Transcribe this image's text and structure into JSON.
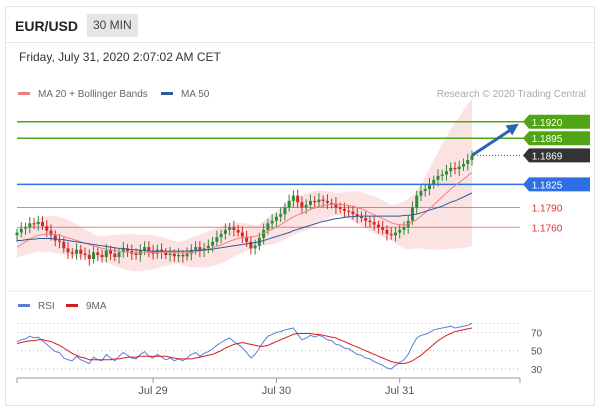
{
  "header": {
    "symbol": "EUR/USD",
    "timeframe": "30 MIN",
    "timestamp": "Friday, July 31, 2020 2:07:02 AM CET"
  },
  "chart_data": {
    "type": "line",
    "main": {
      "legend": [
        {
          "name": "MA 20 + Bollinger Bands",
          "color": "#f08080"
        },
        {
          "name": "MA 50",
          "color": "#2c5c9c"
        }
      ],
      "credit": "Research © 2020 Trading Central",
      "ylim": [
        1.1668,
        1.1956
      ],
      "last_price": {
        "value": 1.1869,
        "label": "1.1869",
        "color": "#333333"
      },
      "arrow": {
        "from": {
          "x": 107,
          "y": 1.1869
        },
        "to": {
          "x": 118,
          "y": 1.1917
        },
        "color": "#2c64ad"
      },
      "levels": [
        {
          "value": 1.192,
          "label": "1.1920",
          "color": "#4fa515",
          "kind": "resistance"
        },
        {
          "value": 1.1895,
          "label": "1.1895",
          "color": "#4fa515",
          "kind": "resistance"
        },
        {
          "value": 1.1825,
          "label": "1.1825",
          "color": "#2e6fe6",
          "kind": "pivot"
        },
        {
          "value": 1.179,
          "label": "1.1790",
          "color": "#e03030",
          "kind": "support"
        },
        {
          "value": 1.176,
          "label": "1.1760",
          "color": "#e03030",
          "kind": "support"
        }
      ],
      "close": [
        1.1752,
        1.1758,
        1.176,
        1.1766,
        1.1765,
        1.1768,
        1.1762,
        1.1755,
        1.1748,
        1.174,
        1.1738,
        1.1728,
        1.1722,
        1.172,
        1.1726,
        1.172,
        1.1718,
        1.1712,
        1.1722,
        1.1718,
        1.1715,
        1.1725,
        1.172,
        1.1715,
        1.1722,
        1.1728,
        1.1724,
        1.172,
        1.1718,
        1.1725,
        1.173,
        1.1724,
        1.172,
        1.1726,
        1.1722,
        1.1718,
        1.172,
        1.1716,
        1.1718,
        1.1716,
        1.172,
        1.1726,
        1.173,
        1.1724,
        1.1728,
        1.1732,
        1.1738,
        1.1745,
        1.175,
        1.1756,
        1.176,
        1.1756,
        1.1752,
        1.1746,
        1.1738,
        1.1728,
        1.1732,
        1.1744,
        1.1756,
        1.1766,
        1.177,
        1.1776,
        1.178,
        1.179,
        1.18,
        1.1808,
        1.1798,
        1.179,
        1.1794,
        1.18,
        1.1798,
        1.1802,
        1.18,
        1.1797,
        1.1796,
        1.179,
        1.1788,
        1.1785,
        1.1784,
        1.178,
        1.1776,
        1.1774,
        1.177,
        1.1768,
        1.1764,
        1.176,
        1.1756,
        1.175,
        1.1748,
        1.1752,
        1.1756,
        1.176,
        1.177,
        1.179,
        1.1808,
        1.1815,
        1.1818,
        1.1825,
        1.1832,
        1.1838,
        1.184,
        1.1845,
        1.185,
        1.1848,
        1.1852,
        1.1856,
        1.1862,
        1.1869
      ],
      "ma20": [
        1.173,
        1.1734,
        1.1738,
        1.1742,
        1.1745,
        1.1748,
        1.1749,
        1.175,
        1.175,
        1.1749,
        1.1748,
        1.1746,
        1.1744,
        1.1742,
        1.174,
        1.1738,
        1.1736,
        1.1734,
        1.1732,
        1.173,
        1.1728,
        1.1727,
        1.1726,
        1.1725,
        1.1724,
        1.1723,
        1.1722,
        1.1722,
        1.1721,
        1.1721,
        1.1722,
        1.1722,
        1.1722,
        1.1722,
        1.1723,
        1.1722,
        1.1722,
        1.1722,
        1.1721,
        1.1721,
        1.1721,
        1.1722,
        1.1723,
        1.1724,
        1.1725,
        1.1727,
        1.1729,
        1.1731,
        1.1733,
        1.1736,
        1.1739,
        1.1741,
        1.1743,
        1.1744,
        1.1745,
        1.1745,
        1.1746,
        1.1748,
        1.1751,
        1.1754,
        1.1757,
        1.176,
        1.1764,
        1.1768,
        1.1772,
        1.1776,
        1.1779,
        1.1781,
        1.1784,
        1.1787,
        1.179,
        1.1792,
        1.1793,
        1.1794,
        1.1795,
        1.1795,
        1.1795,
        1.1794,
        1.1793,
        1.1792,
        1.179,
        1.1788,
        1.1785,
        1.1782,
        1.1779,
        1.1776,
        1.1773,
        1.177,
        1.1767,
        1.1765,
        1.1764,
        1.1764,
        1.1765,
        1.1768,
        1.1772,
        1.1777,
        1.1782,
        1.1788,
        1.1794,
        1.18,
        1.1806,
        1.1812,
        1.1818,
        1.1823,
        1.1828,
        1.1833,
        1.1838,
        1.1843
      ],
      "ma50": [
        1.174,
        1.174,
        1.1741,
        1.1742,
        1.1742,
        1.1743,
        1.1743,
        1.1743,
        1.1743,
        1.1742,
        1.1742,
        1.1741,
        1.174,
        1.1739,
        1.1738,
        1.1737,
        1.1736,
        1.1735,
        1.1734,
        1.1733,
        1.1732,
        1.1731,
        1.173,
        1.1729,
        1.1728,
        1.1728,
        1.1727,
        1.1726,
        1.1726,
        1.1725,
        1.1725,
        1.1724,
        1.1724,
        1.1724,
        1.1724,
        1.1724,
        1.1724,
        1.1724,
        1.1724,
        1.1724,
        1.1724,
        1.1724,
        1.1725,
        1.1725,
        1.1726,
        1.1726,
        1.1727,
        1.1728,
        1.1729,
        1.173,
        1.1731,
        1.1732,
        1.1733,
        1.1734,
        1.1735,
        1.1736,
        1.1737,
        1.1738,
        1.174,
        1.1742,
        1.1744,
        1.1746,
        1.1748,
        1.175,
        1.1752,
        1.1755,
        1.1757,
        1.1759,
        1.1761,
        1.1763,
        1.1765,
        1.1767,
        1.1769,
        1.177,
        1.1772,
        1.1773,
        1.1774,
        1.1775,
        1.1776,
        1.1776,
        1.1777,
        1.1777,
        1.1777,
        1.1777,
        1.1777,
        1.1777,
        1.1777,
        1.1777,
        1.1777,
        1.1777,
        1.1777,
        1.1778,
        1.1778,
        1.1779,
        1.178,
        1.1782,
        1.1784,
        1.1786,
        1.1788,
        1.179,
        1.1792,
        1.1795,
        1.1798,
        1.18,
        1.1803,
        1.1806,
        1.1809,
        1.1812
      ]
    },
    "rsi": {
      "legend": [
        {
          "name": "RSI",
          "color": "#5b7fd6"
        },
        {
          "name": "9MA",
          "color": "#d22020"
        }
      ],
      "ylim": [
        20,
        86
      ],
      "ticks": [
        70,
        50,
        30
      ],
      "rsi": [
        60,
        62,
        63,
        66,
        64,
        65,
        61,
        57,
        53,
        49,
        48,
        42,
        40,
        39,
        44,
        40,
        38,
        36,
        43,
        40,
        39,
        46,
        42,
        39,
        44,
        48,
        45,
        42,
        41,
        46,
        49,
        44,
        42,
        46,
        43,
        40,
        42,
        39,
        41,
        39,
        42,
        46,
        48,
        44,
        47,
        49,
        52,
        56,
        59,
        62,
        64,
        60,
        57,
        53,
        48,
        42,
        46,
        53,
        60,
        66,
        68,
        70,
        71,
        73,
        74,
        75,
        68,
        62,
        64,
        67,
        65,
        67,
        65,
        62,
        61,
        57,
        56,
        53,
        52,
        49,
        46,
        45,
        42,
        41,
        38,
        36,
        34,
        31,
        30,
        34,
        37,
        40,
        46,
        56,
        64,
        67,
        68,
        70,
        73,
        74,
        75,
        76,
        77,
        75,
        76,
        77,
        78,
        80
      ],
      "ma9": [
        58,
        59,
        60,
        61,
        61,
        62,
        62,
        61,
        60,
        58,
        56,
        53,
        50,
        47,
        45,
        43,
        42,
        40,
        40,
        40,
        40,
        40,
        40,
        41,
        41,
        42,
        43,
        43,
        43,
        44,
        44,
        44,
        44,
        44,
        44,
        44,
        43,
        42,
        41,
        41,
        41,
        41,
        42,
        43,
        44,
        45,
        46,
        48,
        50,
        53,
        55,
        57,
        58,
        59,
        58,
        57,
        56,
        55,
        55,
        56,
        58,
        60,
        62,
        64,
        66,
        68,
        69,
        69,
        69,
        69,
        68,
        68,
        67,
        66,
        65,
        64,
        62,
        60,
        58,
        56,
        54,
        52,
        50,
        48,
        46,
        44,
        42,
        40,
        38,
        37,
        36,
        36,
        37,
        39,
        42,
        45,
        49,
        53,
        57,
        61,
        64,
        67,
        69,
        71,
        72,
        73,
        74,
        75
      ]
    },
    "x_axis": {
      "ticks": [
        {
          "label": "Jul 29",
          "index": 32
        },
        {
          "label": "Jul 30",
          "index": 61
        },
        {
          "label": "Jul 31",
          "index": 90
        }
      ]
    }
  }
}
